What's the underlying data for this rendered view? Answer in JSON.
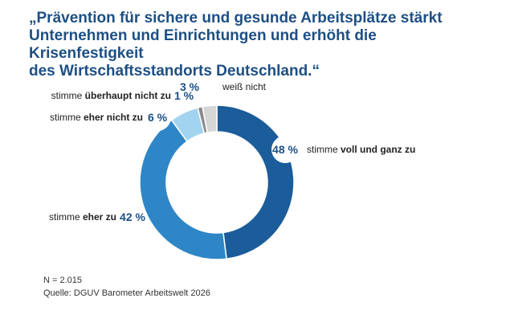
{
  "chart_data": {
    "type": "pie",
    "title_lines": [
      "„Prävention für sichere und gesunde Arbeitsplätze stärkt",
      " Unternehmen und Einrichtungen und erhöht die Krisenfestigkeit",
      " des Wirtschaftsstandorts Deutschland.“"
    ],
    "slices": [
      {
        "pct": 48,
        "pct_label": "48 %",
        "label_pre": "stimme ",
        "label_bold": "voll und ganz zu",
        "color": "#1b5c9a"
      },
      {
        "pct": 42,
        "pct_label": "42 %",
        "label_pre": "stimme ",
        "label_bold": "eher zu",
        "color": "#2e86c6"
      },
      {
        "pct": 6,
        "pct_label": "6 %",
        "label_pre": "stimme ",
        "label_bold": "eher nicht zu",
        "color": "#a3d4ef"
      },
      {
        "pct": 1,
        "pct_label": "1 %",
        "label_pre": "stimme ",
        "label_bold": "überhaupt nicht zu",
        "color": "#8a8a8a"
      },
      {
        "pct": 3,
        "pct_label": "3 %",
        "label_pre": "weiß nicht",
        "label_bold": "",
        "color": "#d6d6d6"
      }
    ]
  },
  "footer": {
    "n": "N = 2.015",
    "source": "Quelle: DGUV Barometer Arbeitswelt 2026"
  }
}
